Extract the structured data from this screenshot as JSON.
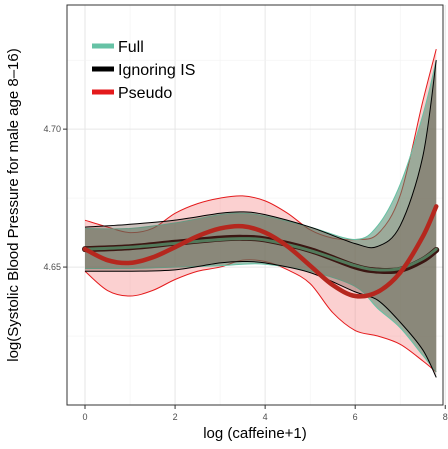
{
  "chart_data": {
    "type": "line",
    "xlabel": "log (caffeine+1)",
    "ylabel": "log(Systolic Blood Pressure for male age 8–16)",
    "xlim": [
      -0.4,
      7.95
    ],
    "ylim": [
      4.6,
      4.745
    ],
    "x_ticks": [
      0,
      2,
      4,
      6,
      8
    ],
    "y_ticks": [
      4.65,
      4.7
    ],
    "y_tick_labels": [
      "4.65",
      "4.70"
    ],
    "grid": true,
    "legend_position": "top-left",
    "series": [
      {
        "name": "Full",
        "color": "#66c2a5",
        "line_color": "#52795a",
        "band_color": "#4f8a6e",
        "x": [
          0,
          1,
          2,
          3,
          3.5,
          4,
          5,
          6,
          6.5,
          7,
          7.5,
          7.8
        ],
        "y": [
          4.6565,
          4.6572,
          4.6586,
          4.66,
          4.6603,
          4.6598,
          4.656,
          4.6505,
          4.649,
          4.6495,
          4.653,
          4.6565
        ],
        "upper": [
          4.664,
          4.664,
          4.666,
          4.669,
          4.6695,
          4.6685,
          4.6645,
          4.66,
          4.665,
          4.68,
          4.705,
          4.725
        ],
        "lower": [
          4.6495,
          4.6495,
          4.65,
          4.6505,
          4.651,
          4.651,
          4.6485,
          4.643,
          4.635,
          4.628,
          4.618,
          4.612
        ]
      },
      {
        "name": "Ignoring IS",
        "color": "#000000",
        "line_color": "#3b1612",
        "x": [
          0,
          1,
          2,
          3,
          3.5,
          4,
          5,
          6,
          6.5,
          7,
          7.5,
          7.8
        ],
        "y": [
          4.6565,
          4.6572,
          4.6588,
          4.6603,
          4.6606,
          4.66,
          4.6562,
          4.6502,
          4.6487,
          4.649,
          4.6525,
          4.6562
        ],
        "upper": [
          4.6645,
          4.6655,
          4.667,
          4.6695,
          4.67,
          4.669,
          4.6645,
          4.6585,
          4.6575,
          4.665,
          4.69,
          4.725
        ],
        "lower": [
          4.6485,
          4.6485,
          4.649,
          4.6515,
          4.652,
          4.6515,
          4.648,
          4.641,
          4.638,
          4.63,
          4.62,
          4.61
        ]
      },
      {
        "name": "Pseudo",
        "color": "#e41a1c",
        "line_color": "#b5271e",
        "band_color": "#f58a8a",
        "x": [
          0,
          0.5,
          1,
          1.5,
          2,
          2.5,
          3,
          3.5,
          4,
          4.5,
          5,
          5.5,
          6,
          6.5,
          7,
          7.5,
          7.8
        ],
        "y": [
          4.6565,
          4.6525,
          4.6515,
          4.6535,
          4.6572,
          4.6612,
          4.664,
          4.6648,
          4.6625,
          4.6575,
          4.6505,
          4.6435,
          4.6395,
          4.641,
          4.648,
          4.661,
          4.672
        ],
        "upper": [
          4.667,
          4.6645,
          4.6625,
          4.664,
          4.6695,
          4.673,
          4.675,
          4.6758,
          4.674,
          4.6695,
          4.6635,
          4.6605,
          4.66,
          4.662,
          4.676,
          4.71,
          4.729
        ],
        "lower": [
          4.6485,
          4.6415,
          4.6395,
          4.6415,
          4.6455,
          4.6485,
          4.65,
          4.6525,
          4.652,
          4.649,
          4.644,
          4.6335,
          4.627,
          4.625,
          4.622,
          4.616,
          4.612
        ]
      }
    ]
  }
}
